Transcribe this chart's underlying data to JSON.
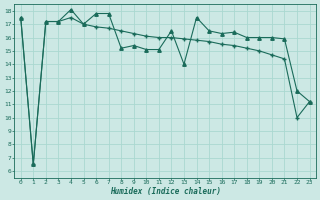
{
  "xlabel": "Humidex (Indice chaleur)",
  "background_color": "#cce8e4",
  "line_color": "#1a6b5a",
  "grid_color": "#aad8d0",
  "xlim": [
    -0.5,
    23.5
  ],
  "ylim": [
    5.5,
    18.5
  ],
  "x_ticks": [
    0,
    1,
    2,
    3,
    4,
    5,
    6,
    7,
    8,
    9,
    10,
    11,
    12,
    13,
    14,
    15,
    16,
    17,
    18,
    19,
    20,
    21,
    22,
    23
  ],
  "y_ticks": [
    6,
    7,
    8,
    9,
    10,
    11,
    12,
    13,
    14,
    15,
    16,
    17,
    18
  ],
  "line1_x": [
    0,
    1,
    2,
    3,
    4,
    5,
    6,
    7,
    8,
    9,
    10,
    11,
    12,
    13,
    14,
    15,
    16,
    17,
    18,
    19,
    20,
    21,
    22,
    23
  ],
  "line1_y": [
    17.5,
    6.5,
    17.2,
    17.2,
    18.1,
    17.0,
    17.8,
    17.8,
    15.2,
    15.4,
    15.1,
    15.1,
    16.5,
    14.0,
    17.5,
    16.5,
    16.3,
    16.4,
    16.0,
    16.0,
    16.0,
    15.9,
    12.0,
    11.2
  ],
  "line2_x": [
    0,
    1,
    2,
    3,
    4,
    5,
    6,
    7,
    8,
    9,
    10,
    11,
    12,
    13,
    14,
    15,
    16,
    17,
    18,
    19,
    20,
    21,
    22,
    23
  ],
  "line2_y": [
    17.5,
    6.5,
    17.2,
    17.2,
    17.5,
    17.0,
    16.8,
    16.7,
    16.5,
    16.3,
    16.1,
    16.0,
    16.0,
    15.9,
    15.8,
    15.7,
    15.5,
    15.4,
    15.2,
    15.0,
    14.7,
    14.4,
    10.0,
    11.2
  ]
}
